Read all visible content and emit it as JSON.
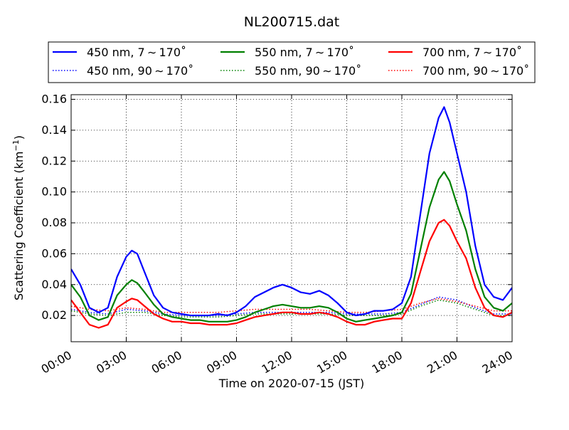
{
  "chart_data": {
    "type": "line",
    "title": "NL200715.dat",
    "xlabel": "Time on 2020-07-15 (JST)",
    "ylabel": "Scattering Coefficient (km",
    "ylabel_sup": "−1",
    "ylabel_close": ")",
    "xlim": [
      0,
      24
    ],
    "ylim": [
      0.003,
      0.163
    ],
    "grid": true,
    "legend_position": "top",
    "x_ticks": [
      {
        "value": 0,
        "label": "00:00"
      },
      {
        "value": 3,
        "label": "03:00"
      },
      {
        "value": 6,
        "label": "06:00"
      },
      {
        "value": 9,
        "label": "09:00"
      },
      {
        "value": 12,
        "label": "12:00"
      },
      {
        "value": 15,
        "label": "15:00"
      },
      {
        "value": 18,
        "label": "18:00"
      },
      {
        "value": 21,
        "label": "21:00"
      },
      {
        "value": 24,
        "label": "24:00"
      }
    ],
    "y_ticks": [
      {
        "value": 0.02,
        "label": "0.02"
      },
      {
        "value": 0.04,
        "label": "0.04"
      },
      {
        "value": 0.06,
        "label": "0.06"
      },
      {
        "value": 0.08,
        "label": "0.08"
      },
      {
        "value": 0.1,
        "label": "0.10"
      },
      {
        "value": 0.12,
        "label": "0.12"
      },
      {
        "value": 0.14,
        "label": "0.14"
      },
      {
        "value": 0.16,
        "label": "0.16"
      }
    ],
    "series": [
      {
        "name": "450 nm, 7 ∼ 170˚",
        "color": "#0000ff",
        "style": "solid",
        "x": [
          0,
          0.5,
          1,
          1.5,
          2,
          2.5,
          3,
          3.3,
          3.6,
          4,
          4.5,
          5,
          5.5,
          6,
          6.5,
          7,
          7.5,
          8,
          8.5,
          9,
          9.5,
          10,
          10.5,
          11,
          11.5,
          12,
          12.5,
          13,
          13.5,
          14,
          14.5,
          15,
          15.5,
          16,
          16.5,
          17,
          17.5,
          18,
          18.5,
          19,
          19.5,
          20,
          20.3,
          20.6,
          21,
          21.5,
          22,
          22.5,
          23,
          23.5,
          24
        ],
        "y": [
          0.05,
          0.04,
          0.025,
          0.022,
          0.025,
          0.045,
          0.058,
          0.062,
          0.06,
          0.048,
          0.033,
          0.025,
          0.022,
          0.021,
          0.02,
          0.02,
          0.02,
          0.021,
          0.02,
          0.022,
          0.026,
          0.032,
          0.035,
          0.038,
          0.04,
          0.038,
          0.035,
          0.034,
          0.036,
          0.033,
          0.028,
          0.022,
          0.02,
          0.021,
          0.023,
          0.023,
          0.024,
          0.028,
          0.045,
          0.085,
          0.125,
          0.148,
          0.155,
          0.145,
          0.125,
          0.1,
          0.065,
          0.04,
          0.032,
          0.03,
          0.038
        ]
      },
      {
        "name": "550 nm, 7 ∼ 170˚",
        "color": "#008000",
        "style": "solid",
        "x": [
          0,
          0.5,
          1,
          1.5,
          2,
          2.5,
          3,
          3.3,
          3.6,
          4,
          4.5,
          5,
          5.5,
          6,
          6.5,
          7,
          7.5,
          8,
          8.5,
          9,
          9.5,
          10,
          10.5,
          11,
          11.5,
          12,
          12.5,
          13,
          13.5,
          14,
          14.5,
          15,
          15.5,
          16,
          16.5,
          17,
          17.5,
          18,
          18.5,
          19,
          19.5,
          20,
          20.3,
          20.6,
          21,
          21.5,
          22,
          22.5,
          23,
          23.5,
          24
        ],
        "y": [
          0.04,
          0.032,
          0.02,
          0.017,
          0.019,
          0.033,
          0.04,
          0.043,
          0.041,
          0.035,
          0.027,
          0.021,
          0.019,
          0.018,
          0.017,
          0.017,
          0.016,
          0.016,
          0.016,
          0.017,
          0.019,
          0.022,
          0.024,
          0.026,
          0.027,
          0.026,
          0.025,
          0.025,
          0.026,
          0.025,
          0.022,
          0.018,
          0.016,
          0.017,
          0.018,
          0.019,
          0.02,
          0.022,
          0.034,
          0.062,
          0.09,
          0.108,
          0.113,
          0.107,
          0.092,
          0.075,
          0.05,
          0.032,
          0.025,
          0.023,
          0.028
        ]
      },
      {
        "name": "700 nm, 7 ∼ 170˚",
        "color": "#ff0000",
        "style": "solid",
        "x": [
          0,
          0.5,
          1,
          1.5,
          2,
          2.5,
          3,
          3.3,
          3.6,
          4,
          4.5,
          5,
          5.5,
          6,
          6.5,
          7,
          7.5,
          8,
          8.5,
          9,
          9.5,
          10,
          10.5,
          11,
          11.5,
          12,
          12.5,
          13,
          13.5,
          14,
          14.5,
          15,
          15.5,
          16,
          16.5,
          17,
          17.5,
          18,
          18.5,
          19,
          19.5,
          20,
          20.3,
          20.6,
          21,
          21.5,
          22,
          22.5,
          23,
          23.5,
          24
        ],
        "y": [
          0.03,
          0.022,
          0.014,
          0.012,
          0.014,
          0.025,
          0.029,
          0.031,
          0.03,
          0.026,
          0.021,
          0.018,
          0.016,
          0.016,
          0.015,
          0.015,
          0.014,
          0.014,
          0.014,
          0.015,
          0.017,
          0.019,
          0.02,
          0.021,
          0.022,
          0.022,
          0.021,
          0.021,
          0.022,
          0.021,
          0.019,
          0.016,
          0.014,
          0.014,
          0.016,
          0.017,
          0.018,
          0.018,
          0.028,
          0.048,
          0.068,
          0.08,
          0.082,
          0.078,
          0.068,
          0.057,
          0.038,
          0.025,
          0.02,
          0.019,
          0.022
        ]
      },
      {
        "name": "450 nm, 90 ∼ 170˚",
        "color": "#0000ff",
        "style": "dotted",
        "x": [
          0,
          1,
          2,
          3,
          4,
          5,
          6,
          7,
          8,
          9,
          10,
          11,
          12,
          13,
          14,
          15,
          16,
          17,
          18,
          19,
          20,
          21,
          22,
          23,
          24
        ],
        "y": [
          0.024,
          0.022,
          0.021,
          0.024,
          0.023,
          0.021,
          0.02,
          0.02,
          0.02,
          0.021,
          0.022,
          0.022,
          0.022,
          0.022,
          0.022,
          0.021,
          0.021,
          0.021,
          0.022,
          0.027,
          0.032,
          0.03,
          0.025,
          0.021,
          0.021
        ]
      },
      {
        "name": "550 nm, 90 ∼ 170˚",
        "color": "#008000",
        "style": "dotted",
        "x": [
          0,
          1,
          2,
          3,
          4,
          5,
          6,
          7,
          8,
          9,
          10,
          11,
          12,
          13,
          14,
          15,
          16,
          17,
          18,
          19,
          20,
          21,
          22,
          23,
          24
        ],
        "y": [
          0.023,
          0.021,
          0.02,
          0.022,
          0.022,
          0.02,
          0.019,
          0.019,
          0.019,
          0.02,
          0.021,
          0.021,
          0.021,
          0.021,
          0.021,
          0.02,
          0.02,
          0.02,
          0.021,
          0.026,
          0.03,
          0.028,
          0.024,
          0.02,
          0.02
        ]
      },
      {
        "name": "700 nm, 90 ∼ 170˚",
        "color": "#ff0000",
        "style": "dotted",
        "x": [
          0,
          1,
          2,
          3,
          4,
          5,
          6,
          7,
          8,
          9,
          10,
          11,
          12,
          13,
          14,
          15,
          16,
          17,
          18,
          19,
          20,
          21,
          22,
          23,
          24
        ],
        "y": [
          0.026,
          0.024,
          0.023,
          0.025,
          0.024,
          0.022,
          0.022,
          0.022,
          0.022,
          0.023,
          0.024,
          0.024,
          0.024,
          0.024,
          0.023,
          0.022,
          0.022,
          0.023,
          0.024,
          0.028,
          0.031,
          0.029,
          0.026,
          0.023,
          0.023
        ]
      }
    ]
  }
}
